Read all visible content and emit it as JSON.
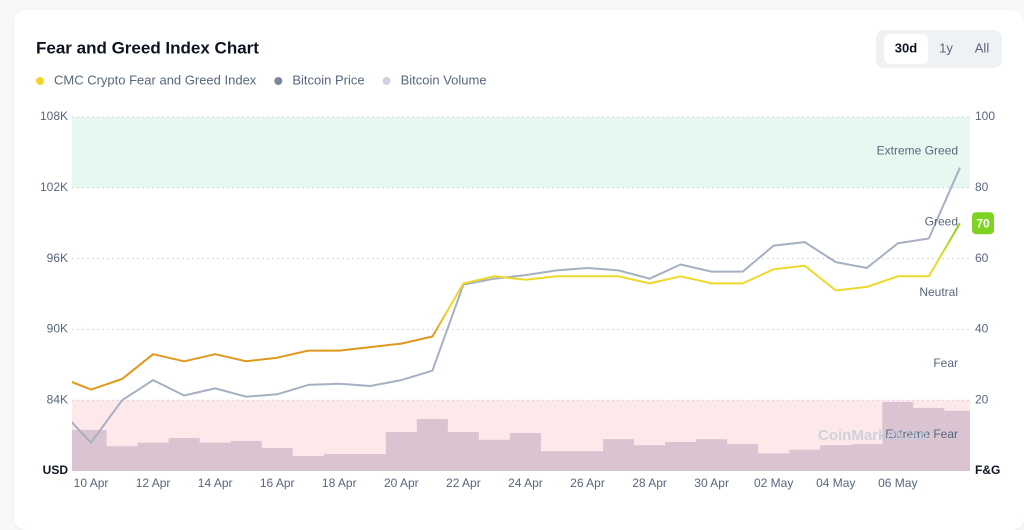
{
  "chart_data": {
    "type": "line",
    "title": "Fear and Greed Index Chart",
    "range_buttons": [
      "30d",
      "1y",
      "All"
    ],
    "active_range": 0,
    "categories": [
      null,
      "10 Apr",
      null,
      "12 Apr",
      null,
      "14 Apr",
      null,
      "16 Apr",
      null,
      "18 Apr",
      null,
      "20 Apr",
      null,
      "22 Apr",
      null,
      "24 Apr",
      null,
      "26 Apr",
      null,
      "28 Apr",
      null,
      "30 Apr",
      null,
      "02 May",
      null,
      "04 May",
      null,
      "06 May",
      null,
      null
    ],
    "series": [
      {
        "name": "CMC Crypto Fear and Greed Index",
        "color": "#f3d42e",
        "axis": "y2",
        "values": [
          26.5,
          23,
          26,
          33,
          31,
          33,
          31,
          32,
          34,
          34,
          35,
          36,
          38,
          53,
          55,
          54,
          55,
          55,
          55,
          53,
          55,
          53,
          53,
          57,
          58,
          51,
          52,
          55,
          55,
          70
        ]
      },
      {
        "name": "Bitcoin Price",
        "color": "#7d879b",
        "line_color": "#a6b0c3",
        "values": [
          83200,
          80400,
          84000,
          85700,
          84400,
          85000,
          84300,
          84500,
          85300,
          85400,
          85200,
          85700,
          86500,
          93800,
          94300,
          94600,
          95000,
          95200,
          95000,
          94300,
          95500,
          94900,
          94900,
          97100,
          97400,
          95700,
          95200,
          97300,
          97700,
          103700
        ]
      },
      {
        "name": "Bitcoin Volume",
        "color": "#cdd3de",
        "bar_color": "rgba(150,125,160,0.33)",
        "axis": "y2",
        "kind": "bar",
        "values": [
          11.6,
          11.6,
          7,
          8,
          9.3,
          8,
          8.5,
          6.5,
          4.2,
          4.8,
          4.8,
          11,
          14.7,
          11,
          8.8,
          10.7,
          5.6,
          5.6,
          9,
          7.3,
          8.2,
          9,
          7.6,
          5,
          6,
          7.3,
          7.6,
          19.5,
          17.8,
          17
        ]
      }
    ],
    "ylabel": "USD",
    "ylim": [
      78000,
      108000
    ],
    "yticks": [
      {
        "value": 84000,
        "label": "84K"
      },
      {
        "value": 90000,
        "label": "90K"
      },
      {
        "value": 96000,
        "label": "96K"
      },
      {
        "value": 102000,
        "label": "102K"
      },
      {
        "value": 108000,
        "label": "108K"
      }
    ],
    "y2label": "F&G",
    "y2lim": [
      0,
      100
    ],
    "y2ticks": [
      20,
      40,
      60,
      80,
      100
    ],
    "zones": [
      {
        "label": "Extreme Fear",
        "from": 0,
        "to": 20,
        "color": "#fde8ea"
      },
      {
        "label": "Fear",
        "from": 20,
        "to": 40
      },
      {
        "label": "Neutral",
        "from": 40,
        "to": 60
      },
      {
        "label": "Greed",
        "from": 60,
        "to": 80
      },
      {
        "label": "Extreme Greed",
        "from": 80,
        "to": 100,
        "color": "#e7f8f0"
      }
    ],
    "latest_badge_color": "#7ed321",
    "watermark": "CoinMarketCap",
    "grid": true
  }
}
